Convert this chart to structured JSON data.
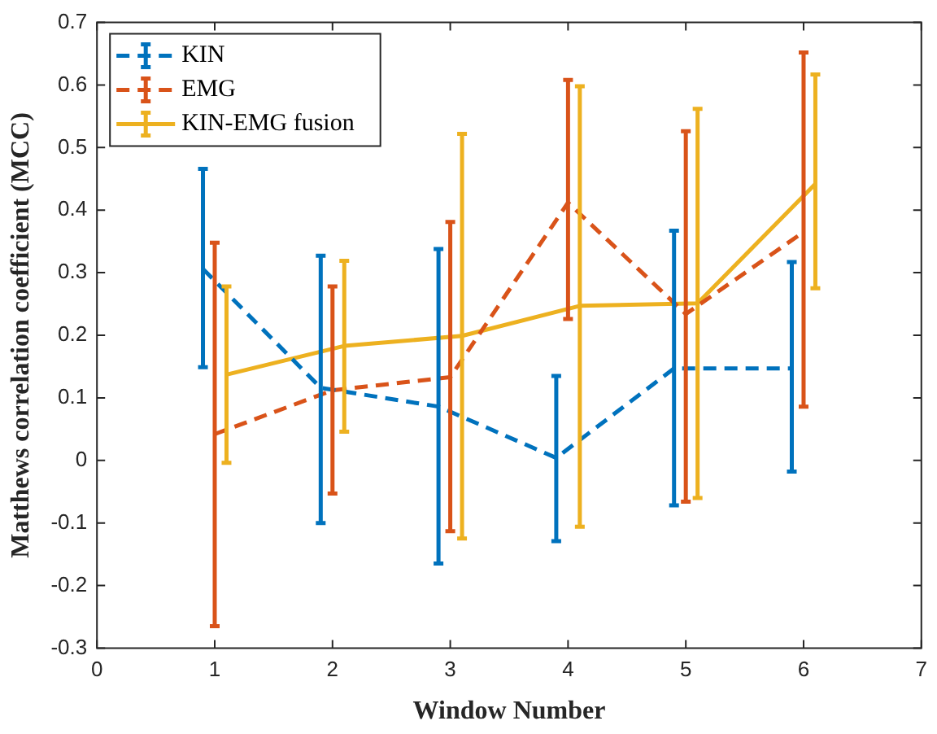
{
  "chart_data": {
    "type": "line",
    "xlabel": "Window Number",
    "ylabel": "Matthews correlation coefficient (MCC)",
    "xlim": [
      0,
      7
    ],
    "xticks": [
      0,
      1,
      2,
      3,
      4,
      5,
      6,
      7
    ],
    "ylim": [
      -0.3,
      0.7
    ],
    "yticks": [
      -0.3,
      -0.2,
      -0.1,
      0,
      0.1,
      0.2,
      0.3,
      0.4,
      0.5,
      0.6,
      0.7
    ],
    "grid": false,
    "legend": "top left",
    "marker": "none",
    "series": [
      {
        "name": "KIN",
        "color": "#0072bd",
        "line_style": "dashed",
        "x": [
          0.9,
          1.9,
          2.9,
          3.9,
          4.9,
          5.9
        ],
        "values": [
          0.306,
          0.116,
          0.086,
          0.004,
          0.147,
          0.147
        ],
        "errors": [
          [
            0.149,
            0.466
          ],
          [
            -0.1,
            0.327
          ],
          [
            -0.165,
            0.338
          ],
          [
            -0.129,
            0.135
          ],
          [
            -0.072,
            0.367
          ],
          [
            -0.018,
            0.317
          ]
        ]
      },
      {
        "name": "EMG",
        "color": "#d95319",
        "line_style": "dashed",
        "x": [
          1,
          2,
          3,
          4,
          5,
          6
        ],
        "values": [
          0.042,
          0.112,
          0.133,
          0.412,
          0.234,
          0.365
        ],
        "errors": [
          [
            -0.265,
            0.348
          ],
          [
            -0.053,
            0.278
          ],
          [
            -0.113,
            0.381
          ],
          [
            0.226,
            0.608
          ],
          [
            -0.066,
            0.526
          ],
          [
            0.086,
            0.652
          ]
        ]
      },
      {
        "name": "KIN-EMG fusion",
        "color": "#edb120",
        "line_style": "solid",
        "x": [
          1.1,
          2.1,
          3.1,
          4.1,
          5.1,
          6.1
        ],
        "values": [
          0.137,
          0.183,
          0.199,
          0.247,
          0.251,
          0.442
        ],
        "errors": [
          [
            -0.004,
            0.278
          ],
          [
            0.046,
            0.319
          ],
          [
            -0.125,
            0.522
          ],
          [
            -0.106,
            0.598
          ],
          [
            -0.06,
            0.562
          ],
          [
            0.275,
            0.617
          ]
        ]
      }
    ]
  }
}
